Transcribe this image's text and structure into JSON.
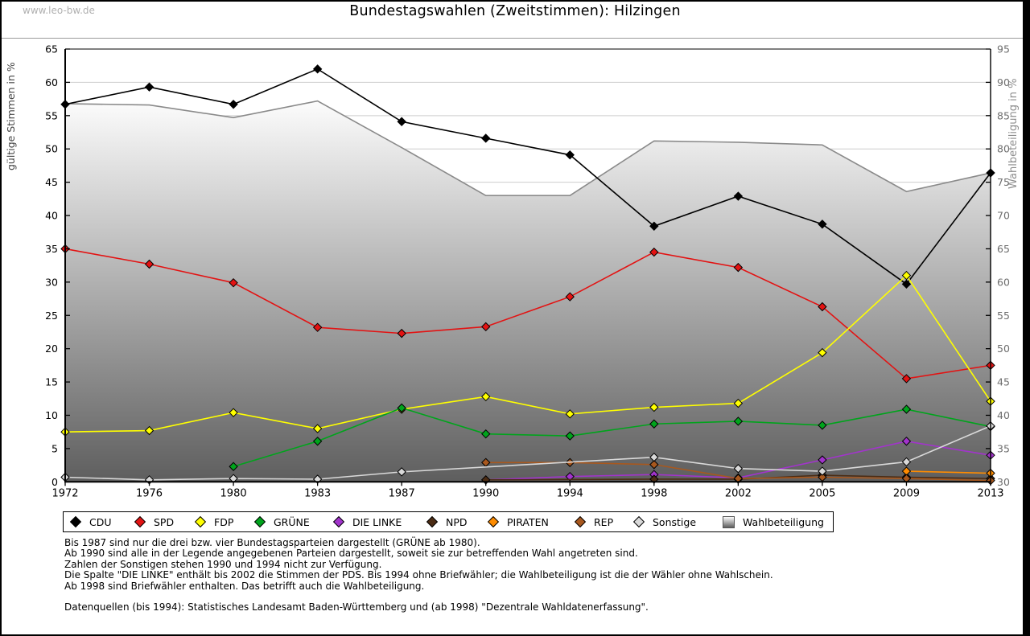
{
  "watermark": "www.leo-bw.de",
  "title": "Bundestagswahlen (Zweitstimmen): Hilzingen",
  "axes": {
    "left_label": "gültige Stimmen in %",
    "right_label": "Wahlbeteiligung in %",
    "left_min": 0,
    "left_max": 65,
    "left_step": 5,
    "right_min": 30,
    "right_max": 95,
    "right_step": 5
  },
  "chart_data": {
    "type": "line",
    "title": "Bundestagswahlen (Zweitstimmen): Hilzingen",
    "xlabel": "",
    "ylabel_left": "gültige Stimmen in %",
    "ylabel_right": "Wahlbeteiligung in %",
    "ylim_left": [
      0,
      65
    ],
    "ylim_right": [
      30,
      95
    ],
    "grid": true,
    "legend_position": "bottom",
    "categories": [
      1972,
      1976,
      1980,
      1983,
      1987,
      1990,
      1994,
      1998,
      2002,
      2005,
      2009,
      2013
    ],
    "series": [
      {
        "name": "CDU",
        "axis": "left",
        "color": "#000000",
        "values": [
          56.7,
          59.3,
          56.7,
          62.0,
          54.1,
          51.6,
          49.1,
          38.4,
          42.9,
          38.7,
          29.7,
          46.4
        ]
      },
      {
        "name": "SPD",
        "axis": "left",
        "color": "#e31313",
        "values": [
          35.0,
          32.7,
          29.9,
          23.2,
          22.3,
          23.3,
          27.8,
          34.5,
          32.2,
          26.3,
          15.5,
          17.5
        ]
      },
      {
        "name": "FDP",
        "axis": "left",
        "color": "#ffff00",
        "values": [
          7.5,
          7.7,
          10.4,
          8.0,
          10.9,
          12.8,
          10.2,
          11.2,
          11.8,
          19.4,
          31.0,
          12.1
        ]
      },
      {
        "name": "GRÜNE",
        "axis": "left",
        "color": "#00a41c",
        "values": [
          null,
          null,
          2.3,
          6.1,
          11.1,
          7.2,
          6.9,
          8.7,
          9.1,
          8.5,
          10.9,
          8.3
        ]
      },
      {
        "name": "DIE LINKE",
        "axis": "left",
        "color": "#a234cc",
        "values": [
          null,
          null,
          null,
          null,
          null,
          0.3,
          0.8,
          1.1,
          0.6,
          3.3,
          6.1,
          4.0
        ]
      },
      {
        "name": "NPD",
        "axis": "left",
        "color": "#4b2c14",
        "values": [
          null,
          null,
          null,
          null,
          null,
          0.3,
          null,
          0.4,
          0.4,
          1.0,
          0.7,
          0.5
        ]
      },
      {
        "name": "PIRATEN",
        "axis": "left",
        "color": "#ff8c00",
        "values": [
          null,
          null,
          null,
          null,
          null,
          null,
          null,
          null,
          null,
          null,
          1.6,
          1.3
        ]
      },
      {
        "name": "REP",
        "axis": "left",
        "color": "#a8581e",
        "values": [
          null,
          null,
          null,
          null,
          null,
          2.9,
          2.9,
          2.6,
          0.5,
          0.7,
          0.5,
          0.2
        ]
      },
      {
        "name": "Sonstige",
        "axis": "left",
        "color": "#d9d9d9",
        "values": [
          0.7,
          0.3,
          0.5,
          0.4,
          1.5,
          null,
          null,
          3.7,
          2.0,
          1.6,
          3.0,
          8.4
        ]
      },
      {
        "name": "Wahlbeteiligung",
        "axis": "right",
        "style": "area",
        "color": "#8a8a8a",
        "fill_top": "#fcfcfc",
        "fill_bottom": "#5e5e5e",
        "values": [
          86.8,
          86.6,
          84.7,
          87.2,
          80.2,
          73.0,
          73.0,
          81.2,
          81.0,
          80.6,
          73.6,
          76.4
        ]
      }
    ]
  },
  "legend": {
    "items": [
      {
        "label": "CDU",
        "color": "#000000",
        "marker": "diamond"
      },
      {
        "label": "SPD",
        "color": "#e31313",
        "marker": "diamond"
      },
      {
        "label": "FDP",
        "color": "#ffff00",
        "marker": "diamond"
      },
      {
        "label": "GRÜNE",
        "color": "#00a41c",
        "marker": "diamond"
      },
      {
        "label": "DIE LINKE",
        "color": "#a234cc",
        "marker": "diamond"
      },
      {
        "label": "NPD",
        "color": "#4b2c14",
        "marker": "diamond"
      },
      {
        "label": "PIRATEN",
        "color": "#ff8c00",
        "marker": "diamond"
      },
      {
        "label": "REP",
        "color": "#a8581e",
        "marker": "diamond"
      },
      {
        "label": "Sonstige",
        "color": "#d9d9d9",
        "marker": "diamond"
      },
      {
        "label": "Wahlbeteiligung",
        "color": "#9a9a9a",
        "marker": "gradient-square"
      }
    ]
  },
  "footnotes": [
    "Bis 1987 sind nur die drei bzw. vier Bundestagsparteien dargestellt (GRÜNE ab 1980).",
    "Ab 1990 sind alle in der Legende angegebenen Parteien dargestellt, soweit sie zur betreffenden Wahl angetreten sind.",
    "Zahlen der Sonstigen stehen 1990 und 1994 nicht zur Verfügung.",
    "Die Spalte \"DIE LINKE\" enthält bis 2002 die Stimmen der PDS. Bis 1994 ohne Briefwähler; die Wahlbeteiligung ist die der Wähler ohne Wahlschein.",
    "Ab 1998 sind Briefwähler enthalten. Das betrifft auch die Wahlbeteiligung."
  ],
  "source": "Datenquellen (bis 1994): Statistisches Landesamt Baden-Württemberg und (ab 1998) \"Dezentrale Wahldatenerfassung\"."
}
